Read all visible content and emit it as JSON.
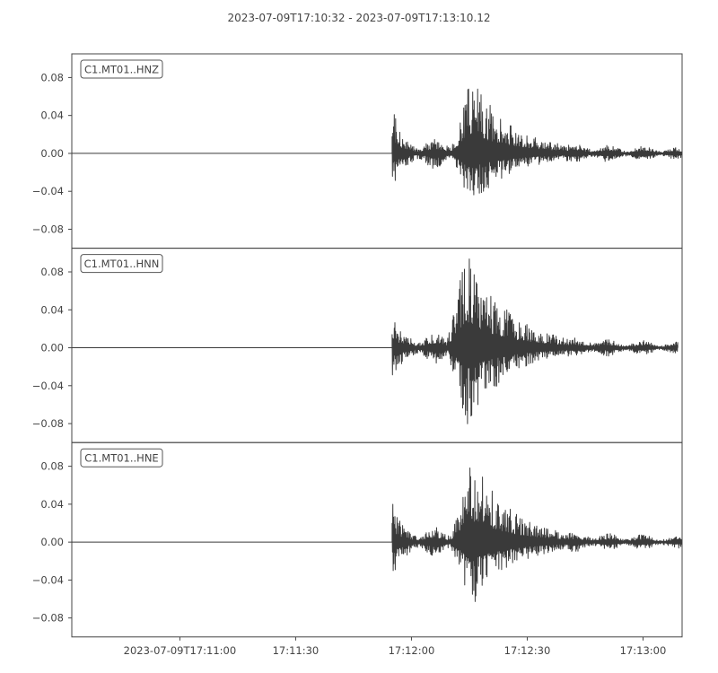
{
  "title": "2023-07-09T17:10:32  -  2023-07-09T17:13:10.12",
  "colors": {
    "trace": "#3a3a3a",
    "axes": "#444444",
    "text": "#444444",
    "background": "#ffffff"
  },
  "chart_data": [
    {
      "type": "line",
      "label": "C1.MT01..HNZ",
      "x_range": [
        "2023-07-09T17:10:32",
        "2023-07-09T17:13:10.12"
      ],
      "ylim": [
        -0.1,
        0.105
      ],
      "yticks": [
        -0.08,
        -0.04,
        0.0,
        0.04,
        0.08
      ],
      "yticklabels": [
        "−0.08",
        "−0.04",
        "0.00",
        "0.04",
        "0.08"
      ],
      "grid": false,
      "series": [
        {
          "onset": "2023-07-09T17:11:55",
          "peak_time": "2023-07-09T17:12:15",
          "peak_max": 0.083,
          "peak_min": -0.057,
          "p_max": 0.05,
          "p_min": -0.04,
          "end": "2023-07-09T17:13:10"
        }
      ]
    },
    {
      "type": "line",
      "label": "C1.MT01..HNN",
      "x_range": [
        "2023-07-09T17:10:32",
        "2023-07-09T17:13:10.12"
      ],
      "ylim": [
        -0.1,
        0.105
      ],
      "yticks": [
        -0.08,
        -0.04,
        0.0,
        0.04,
        0.08
      ],
      "yticklabels": [
        "−0.08",
        "−0.04",
        "0.00",
        "0.04",
        "0.08"
      ],
      "grid": false,
      "series": [
        {
          "onset": "2023-07-09T17:11:55",
          "peak_time": "2023-07-09T17:12:14",
          "peak_max": 0.107,
          "peak_min": -0.085,
          "p_max": 0.035,
          "p_min": -0.035,
          "end": "2023-07-09T17:13:09"
        }
      ]
    },
    {
      "type": "line",
      "label": "C1.MT01..HNE",
      "x_range": [
        "2023-07-09T17:10:32",
        "2023-07-09T17:13:10.12"
      ],
      "ylim": [
        -0.1,
        0.105
      ],
      "yticks": [
        -0.08,
        -0.04,
        0.0,
        0.04,
        0.08
      ],
      "yticklabels": [
        "−0.08",
        "−0.04",
        "0.00",
        "0.04",
        "0.08"
      ],
      "grid": false,
      "series": [
        {
          "onset": "2023-07-09T17:11:55",
          "peak_time": "2023-07-09T17:12:15",
          "peak_max": 0.094,
          "peak_min": -0.072,
          "p_max": 0.045,
          "p_min": -0.042,
          "end": "2023-07-09T17:13:10"
        }
      ]
    }
  ],
  "xaxis": {
    "ticks": [
      "2023-07-09T17:11:00",
      "2023-07-09T17:11:30",
      "2023-07-09T17:12:00",
      "2023-07-09T17:12:30",
      "2023-07-09T17:13:00"
    ],
    "labels": [
      "2023-07-09T17:11:00",
      "17:11:30",
      "17:12:00",
      "17:12:30",
      "17:13:00"
    ]
  }
}
